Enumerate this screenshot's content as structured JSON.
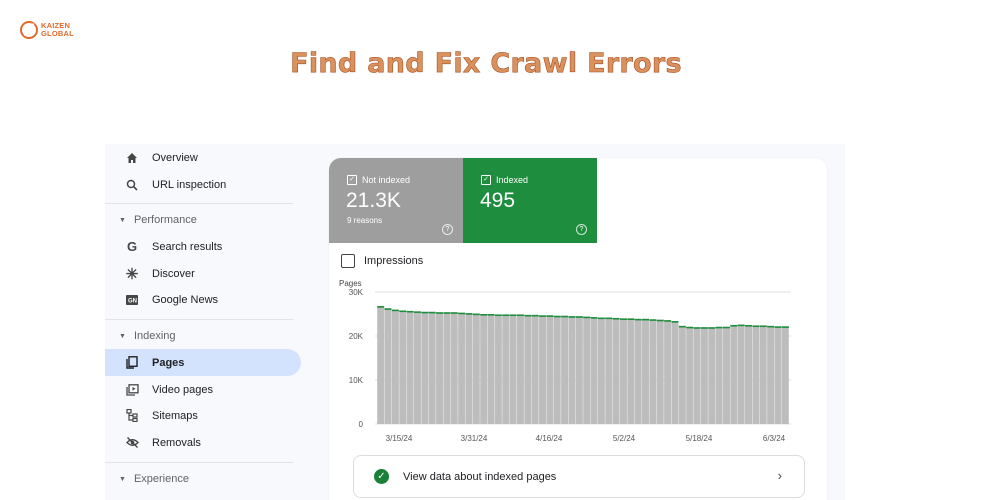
{
  "logo": {
    "line1": "KAIZEN",
    "line2": "GLOBAL",
    "color": "#e06a2a"
  },
  "headline": "Find and Fix Crawl Errors",
  "sidebar": {
    "items": [
      {
        "label": "Overview",
        "icon": "home-icon"
      },
      {
        "label": "URL inspection",
        "icon": "search-icon"
      },
      {
        "label": "Search results",
        "icon": "google-g-icon"
      },
      {
        "label": "Discover",
        "icon": "asterisk-icon"
      },
      {
        "label": "Google News",
        "icon": "google-news-icon"
      },
      {
        "label": "Pages",
        "icon": "pages-icon",
        "active": true
      },
      {
        "label": "Video pages",
        "icon": "video-icon"
      },
      {
        "label": "Sitemaps",
        "icon": "sitemap-icon"
      },
      {
        "label": "Removals",
        "icon": "eye-off-icon"
      }
    ],
    "sections": [
      "Performance",
      "Indexing",
      "Experience"
    ]
  },
  "tiles": {
    "not_indexed": {
      "label": "Not indexed",
      "value": "21.3K",
      "sub": "9 reasons",
      "color": "#9e9e9e"
    },
    "indexed": {
      "label": "Indexed",
      "value": "495",
      "color": "#1e8e3e"
    }
  },
  "impressions_label": "Impressions",
  "chart_data": {
    "type": "bar",
    "ylabel": "Pages",
    "ylim": [
      0,
      30000
    ],
    "yticks": [
      "0",
      "10K",
      "20K",
      "30K"
    ],
    "xticks": [
      "3/15/24",
      "3/31/24",
      "4/16/24",
      "5/2/24",
      "5/18/24",
      "6/3/24"
    ],
    "series": [
      {
        "values": [
          26800,
          26300,
          26000,
          25800,
          25700,
          25600,
          25500,
          25500,
          25400,
          25400,
          25400,
          25300,
          25200,
          25100,
          25000,
          25000,
          24900,
          24900,
          24900,
          24900,
          24800,
          24800,
          24700,
          24700,
          24600,
          24600,
          24500,
          24500,
          24400,
          24300,
          24200,
          24200,
          24100,
          24000,
          24000,
          23900,
          23900,
          23800,
          23700,
          23600,
          23400,
          22300,
          22100,
          22000,
          22000,
          22000,
          22100,
          22100,
          22500,
          22600,
          22500,
          22400,
          22400,
          22300,
          22200,
          22200
        ],
        "colors": {
          "not_indexed": "#bdbdbd",
          "indexed": "#1e8e3e"
        }
      }
    ]
  },
  "cta": {
    "label": "View data about indexed pages"
  }
}
